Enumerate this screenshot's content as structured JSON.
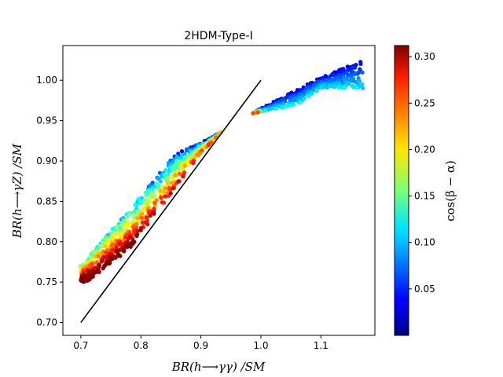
{
  "chart_data": {
    "type": "scatter",
    "title": "2HDM-Type-I",
    "xlabel": "BR(h⟶γγ) /SM",
    "ylabel": "BR(h⟶γZ) /SM",
    "xlim": [
      0.67,
      1.19
    ],
    "ylim": [
      0.684,
      1.043
    ],
    "x_ticks": [
      "0.7",
      "0.8",
      "0.9",
      "1.0",
      "1.1"
    ],
    "x_tick_values": [
      0.7,
      0.8,
      0.9,
      1.0,
      1.1
    ],
    "y_ticks": [
      "0.70",
      "0.75",
      "0.80",
      "0.85",
      "0.90",
      "0.95",
      "1.00"
    ],
    "y_tick_values": [
      0.7,
      0.75,
      0.8,
      0.85,
      0.9,
      0.95,
      1.0
    ],
    "reference_line": {
      "x": [
        0.7,
        1.0
      ],
      "y": [
        0.7,
        1.0
      ],
      "color": "#000000"
    },
    "colorbar": {
      "label": "cos(β − α)",
      "range": [
        0.0,
        0.312
      ],
      "ticks": [
        "0.05",
        "0.10",
        "0.15",
        "0.20",
        "0.25",
        "0.30"
      ],
      "tick_values": [
        0.05,
        0.1,
        0.15,
        0.2,
        0.25,
        0.3
      ],
      "colormap": "jet"
    },
    "band": {
      "description": "dense scatter band of parameter points",
      "point_count": 1400,
      "lower_edge": [
        [
          0.71,
          0.75
        ],
        [
          0.78,
          0.79
        ],
        [
          0.84,
          0.85
        ],
        [
          0.9,
          0.91
        ],
        [
          0.96,
          0.955
        ],
        [
          1.06,
          0.97
        ],
        [
          1.1,
          0.99
        ]
      ],
      "upper_edge": [
        [
          0.7,
          0.77
        ],
        [
          0.78,
          0.84
        ],
        [
          0.86,
          0.91
        ],
        [
          0.92,
          0.93
        ],
        [
          1.0,
          0.965
        ],
        [
          1.09,
          1.0
        ],
        [
          1.17,
          1.025
        ]
      ]
    }
  }
}
